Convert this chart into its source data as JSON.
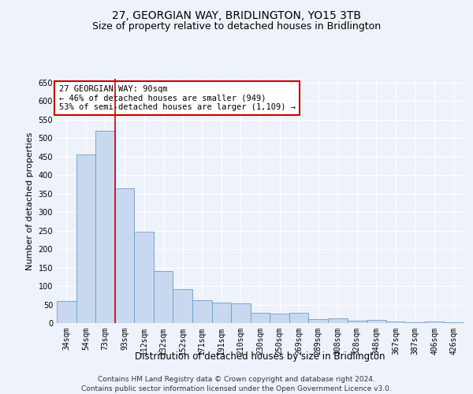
{
  "title": "27, GEORGIAN WAY, BRIDLINGTON, YO15 3TB",
  "subtitle": "Size of property relative to detached houses in Bridlington",
  "xlabel": "Distribution of detached houses by size in Bridlington",
  "ylabel": "Number of detached properties",
  "categories": [
    "34sqm",
    "54sqm",
    "73sqm",
    "93sqm",
    "112sqm",
    "132sqm",
    "152sqm",
    "171sqm",
    "191sqm",
    "210sqm",
    "230sqm",
    "250sqm",
    "269sqm",
    "289sqm",
    "308sqm",
    "328sqm",
    "348sqm",
    "367sqm",
    "387sqm",
    "406sqm",
    "426sqm"
  ],
  "values": [
    60,
    455,
    520,
    365,
    248,
    140,
    92,
    62,
    56,
    53,
    27,
    25,
    27,
    11,
    12,
    6,
    9,
    4,
    3,
    4,
    3
  ],
  "bar_color": "#c8d9ef",
  "bar_edge_color": "#6b9dc8",
  "vline_color": "#cc0000",
  "annotation_line1": "27 GEORGIAN WAY: 90sqm",
  "annotation_line2": "← 46% of detached houses are smaller (949)",
  "annotation_line3": "53% of semi-detached houses are larger (1,109) →",
  "annotation_box_color": "#ffffff",
  "annotation_box_edge": "#cc0000",
  "ylim": [
    0,
    660
  ],
  "yticks": [
    0,
    50,
    100,
    150,
    200,
    250,
    300,
    350,
    400,
    450,
    500,
    550,
    600,
    650
  ],
  "background_color": "#eef2fa",
  "grid_color": "#ffffff",
  "footer_line1": "Contains HM Land Registry data © Crown copyright and database right 2024.",
  "footer_line2": "Contains public sector information licensed under the Open Government Licence v3.0.",
  "title_fontsize": 10,
  "subtitle_fontsize": 9,
  "xlabel_fontsize": 8.5,
  "ylabel_fontsize": 8,
  "tick_fontsize": 7,
  "annotation_fontsize": 7.5,
  "footer_fontsize": 6.5
}
